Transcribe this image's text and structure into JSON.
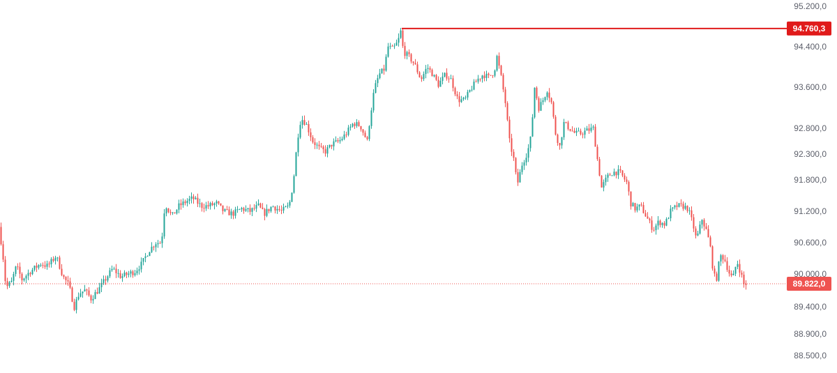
{
  "colors": {
    "up": "#26a69a",
    "down": "#ef5350",
    "highlight": "#e01b1b",
    "axis_text": "#5d606b",
    "background": "#ffffff"
  },
  "chart_data": {
    "type": "candlestick",
    "y_axis": {
      "position": "right",
      "ticks": [
        "95.200,0",
        "94.400,0",
        "93.600,0",
        "92.800,0",
        "92.300,0",
        "91.800,0",
        "91.200,0",
        "90.600,0",
        "90.000,0",
        "89.400,0",
        "88.900,0",
        "88.500,0"
      ]
    },
    "high_line": {
      "label": "94.760,3",
      "style": "solid"
    },
    "last_price": {
      "label": "89.822,0",
      "style": "dotted"
    },
    "price_path": [
      [
        0,
        90.9
      ],
      [
        5,
        90.45
      ],
      [
        10,
        89.75
      ],
      [
        18,
        89.85
      ],
      [
        25,
        90.15
      ],
      [
        33,
        89.9
      ],
      [
        45,
        90.05
      ],
      [
        60,
        90.2
      ],
      [
        70,
        90.15
      ],
      [
        82,
        90.35
      ],
      [
        92,
        89.95
      ],
      [
        100,
        89.8
      ],
      [
        108,
        89.4
      ],
      [
        115,
        89.65
      ],
      [
        123,
        89.7
      ],
      [
        132,
        89.55
      ],
      [
        145,
        89.75
      ],
      [
        155,
        89.95
      ],
      [
        163,
        90.1
      ],
      [
        175,
        89.95
      ],
      [
        185,
        90.0
      ],
      [
        195,
        90.05
      ],
      [
        205,
        90.2
      ],
      [
        215,
        90.45
      ],
      [
        225,
        90.6
      ],
      [
        233,
        90.6
      ],
      [
        238,
        91.35
      ],
      [
        248,
        91.1
      ],
      [
        258,
        91.3
      ],
      [
        270,
        91.4
      ],
      [
        278,
        91.45
      ],
      [
        290,
        91.3
      ],
      [
        300,
        91.3
      ],
      [
        312,
        91.35
      ],
      [
        322,
        91.2
      ],
      [
        335,
        91.15
      ],
      [
        348,
        91.25
      ],
      [
        360,
        91.2
      ],
      [
        372,
        91.3
      ],
      [
        380,
        91.15
      ],
      [
        392,
        91.3
      ],
      [
        405,
        91.2
      ],
      [
        416,
        91.3
      ],
      [
        422,
        91.75
      ],
      [
        428,
        92.6
      ],
      [
        433,
        93.0
      ],
      [
        440,
        92.9
      ],
      [
        450,
        92.55
      ],
      [
        460,
        92.4
      ],
      [
        468,
        92.35
      ],
      [
        478,
        92.5
      ],
      [
        488,
        92.55
      ],
      [
        498,
        92.7
      ],
      [
        508,
        92.9
      ],
      [
        518,
        92.85
      ],
      [
        528,
        92.55
      ],
      [
        532,
        93.0
      ],
      [
        538,
        93.55
      ],
      [
        545,
        93.85
      ],
      [
        552,
        93.95
      ],
      [
        558,
        94.4
      ],
      [
        565,
        94.35
      ],
      [
        572,
        94.5
      ],
      [
        576,
        94.7
      ],
      [
        580,
        94.3
      ],
      [
        588,
        94.2
      ],
      [
        596,
        94.05
      ],
      [
        605,
        93.75
      ],
      [
        614,
        94.0
      ],
      [
        622,
        93.85
      ],
      [
        630,
        93.65
      ],
      [
        640,
        93.85
      ],
      [
        648,
        93.75
      ],
      [
        658,
        93.35
      ],
      [
        668,
        93.35
      ],
      [
        676,
        93.55
      ],
      [
        686,
        93.75
      ],
      [
        694,
        93.85
      ],
      [
        702,
        93.8
      ],
      [
        710,
        93.9
      ],
      [
        714,
        94.2
      ],
      [
        720,
        93.8
      ],
      [
        726,
        93.3
      ],
      [
        732,
        92.55
      ],
      [
        738,
        92.2
      ],
      [
        743,
        91.7
      ],
      [
        750,
        92.1
      ],
      [
        758,
        92.35
      ],
      [
        763,
        92.65
      ],
      [
        768,
        93.6
      ],
      [
        774,
        93.2
      ],
      [
        780,
        93.35
      ],
      [
        786,
        93.55
      ],
      [
        792,
        93.3
      ],
      [
        798,
        92.7
      ],
      [
        804,
        92.45
      ],
      [
        810,
        92.9
      ],
      [
        818,
        92.8
      ],
      [
        826,
        92.7
      ],
      [
        834,
        92.7
      ],
      [
        842,
        92.75
      ],
      [
        852,
        92.8
      ],
      [
        858,
        92.2
      ],
      [
        864,
        91.65
      ],
      [
        872,
        91.85
      ],
      [
        880,
        91.95
      ],
      [
        890,
        91.95
      ],
      [
        900,
        91.75
      ],
      [
        906,
        91.35
      ],
      [
        912,
        91.25
      ],
      [
        920,
        91.3
      ],
      [
        930,
        91.05
      ],
      [
        938,
        90.85
      ],
      [
        946,
        91.0
      ],
      [
        955,
        90.95
      ],
      [
        963,
        91.2
      ],
      [
        972,
        91.3
      ],
      [
        980,
        91.3
      ],
      [
        988,
        91.25
      ],
      [
        995,
        90.95
      ],
      [
        1000,
        90.65
      ],
      [
        1008,
        91.05
      ],
      [
        1015,
        90.8
      ],
      [
        1020,
        90.5
      ],
      [
        1024,
        90.05
      ],
      [
        1028,
        89.85
      ],
      [
        1034,
        90.35
      ],
      [
        1040,
        90.3
      ],
      [
        1046,
        90.05
      ],
      [
        1052,
        89.9
      ],
      [
        1058,
        90.25
      ],
      [
        1064,
        90.0
      ],
      [
        1068,
        89.82
      ]
    ]
  }
}
